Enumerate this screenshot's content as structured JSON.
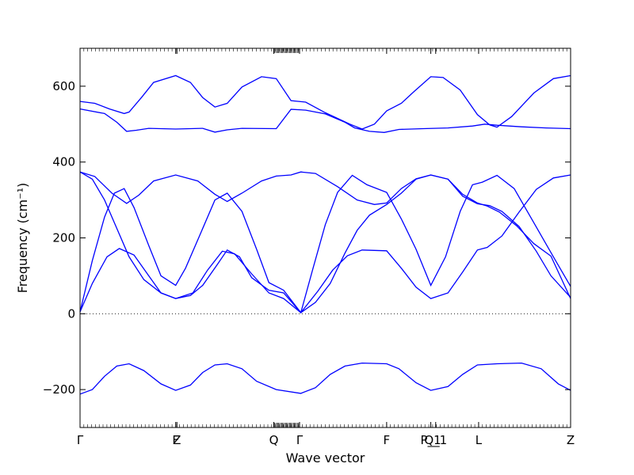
{
  "chart_data": {
    "type": "line",
    "title": "",
    "xlabel": "Wave vector",
    "ylabel": "Frequency (cm⁻¹)",
    "ylim": [
      -300,
      700
    ],
    "yticks": [
      -200,
      0,
      200,
      400,
      600
    ],
    "ytick_labels": [
      "−200",
      "0",
      "200",
      "400",
      "600"
    ],
    "x_positions": [
      0,
      0.388,
      0.395,
      0.79,
      0.895,
      1.25,
      1.43,
      1.45,
      1.625,
      2.0
    ],
    "x_range": [
      0,
      2.0
    ],
    "x_tick_labels": [
      {
        "x": 0,
        "label": "Γ"
      },
      {
        "x": 0.39,
        "label": "F"
      },
      {
        "x": 0.395,
        "label": "Z"
      },
      {
        "x": 0.79,
        "label": "Q"
      },
      {
        "x": 0.895,
        "label": "Γ"
      },
      {
        "x": 1.25,
        "label": "F"
      },
      {
        "x": 1.43,
        "label": "P_1"
      },
      {
        "x": 1.45,
        "label": "Q_1"
      },
      {
        "x": 1.625,
        "label": "L"
      },
      {
        "x": 2.0,
        "label": "Z"
      }
    ],
    "zero_line": true,
    "legend": "none",
    "series": [
      {
        "values": [
          [
            0,
            560
          ],
          [
            0.06,
            555
          ],
          [
            0.12,
            540
          ],
          [
            0.18,
            528
          ],
          [
            0.2,
            532
          ],
          [
            0.25,
            570
          ],
          [
            0.3,
            610
          ],
          [
            0.39,
            628
          ],
          [
            0.45,
            610
          ],
          [
            0.5,
            570
          ],
          [
            0.55,
            545
          ],
          [
            0.6,
            555
          ],
          [
            0.66,
            598
          ],
          [
            0.74,
            625
          ],
          [
            0.8,
            620
          ],
          [
            0.86,
            562
          ],
          [
            0.92,
            558
          ],
          [
            1.0,
            530
          ],
          [
            1.1,
            500
          ],
          [
            1.15,
            487
          ],
          [
            1.2,
            500
          ],
          [
            1.25,
            535
          ],
          [
            1.31,
            555
          ],
          [
            1.36,
            585
          ],
          [
            1.43,
            625
          ],
          [
            1.48,
            623
          ],
          [
            1.55,
            590
          ],
          [
            1.62,
            525
          ],
          [
            1.67,
            498
          ],
          [
            1.7,
            492
          ],
          [
            1.76,
            520
          ],
          [
            1.85,
            582
          ],
          [
            1.93,
            620
          ],
          [
            2.0,
            628
          ]
        ]
      },
      {
        "values": [
          [
            0,
            540
          ],
          [
            0.1,
            528
          ],
          [
            0.15,
            505
          ],
          [
            0.19,
            481
          ],
          [
            0.23,
            484
          ],
          [
            0.28,
            489
          ],
          [
            0.39,
            487
          ],
          [
            0.5,
            489
          ],
          [
            0.55,
            479
          ],
          [
            0.6,
            485
          ],
          [
            0.66,
            489
          ],
          [
            0.8,
            488
          ],
          [
            0.86,
            539
          ],
          [
            0.92,
            537
          ],
          [
            1.0,
            527
          ],
          [
            1.08,
            505
          ],
          [
            1.12,
            490
          ],
          [
            1.18,
            481
          ],
          [
            1.24,
            478
          ],
          [
            1.3,
            486
          ],
          [
            1.4,
            488
          ],
          [
            1.5,
            490
          ],
          [
            1.6,
            495
          ],
          [
            1.65,
            500
          ],
          [
            1.7,
            497
          ],
          [
            1.8,
            493
          ],
          [
            1.9,
            490
          ],
          [
            2.0,
            488
          ]
        ]
      },
      {
        "values": [
          [
            0,
            374
          ],
          [
            0.06,
            362
          ],
          [
            0.13,
            318
          ],
          [
            0.19,
            291
          ],
          [
            0.24,
            313
          ],
          [
            0.3,
            350
          ],
          [
            0.39,
            366
          ],
          [
            0.48,
            350
          ],
          [
            0.55,
            315
          ],
          [
            0.6,
            296
          ],
          [
            0.66,
            318
          ],
          [
            0.74,
            350
          ],
          [
            0.8,
            363
          ],
          [
            0.86,
            366
          ],
          [
            0.9,
            374
          ],
          [
            0.96,
            370
          ],
          [
            1.05,
            335
          ],
          [
            1.13,
            300
          ],
          [
            1.2,
            288
          ],
          [
            1.25,
            292
          ],
          [
            1.31,
            330
          ],
          [
            1.37,
            356
          ],
          [
            1.43,
            366
          ],
          [
            1.5,
            355
          ],
          [
            1.56,
            315
          ],
          [
            1.62,
            292
          ],
          [
            1.66,
            284
          ],
          [
            1.71,
            268
          ],
          [
            1.78,
            232
          ],
          [
            1.85,
            185
          ],
          [
            1.92,
            152
          ],
          [
            2.0,
            40
          ]
        ]
      },
      {
        "values": [
          [
            0,
            5
          ],
          [
            0.05,
            140
          ],
          [
            0.1,
            255
          ],
          [
            0.14,
            318
          ],
          [
            0.18,
            330
          ],
          [
            0.22,
            280
          ],
          [
            0.28,
            180
          ],
          [
            0.33,
            100
          ],
          [
            0.39,
            75
          ],
          [
            0.43,
            120
          ],
          [
            0.49,
            210
          ],
          [
            0.55,
            300
          ],
          [
            0.6,
            318
          ],
          [
            0.66,
            270
          ],
          [
            0.72,
            170
          ],
          [
            0.77,
            82
          ],
          [
            0.83,
            62
          ],
          [
            0.9,
            3
          ],
          [
            0.95,
            120
          ],
          [
            1.0,
            235
          ],
          [
            1.05,
            320
          ],
          [
            1.11,
            365
          ],
          [
            1.17,
            340
          ],
          [
            1.25,
            320
          ],
          [
            1.31,
            250
          ],
          [
            1.37,
            170
          ],
          [
            1.43,
            75
          ],
          [
            1.49,
            150
          ],
          [
            1.55,
            270
          ],
          [
            1.6,
            340
          ],
          [
            1.64,
            347
          ],
          [
            1.7,
            365
          ],
          [
            1.77,
            330
          ],
          [
            1.85,
            240
          ],
          [
            1.93,
            150
          ],
          [
            2.0,
            72
          ]
        ]
      },
      {
        "values": [
          [
            0,
            5
          ],
          [
            0.05,
            80
          ],
          [
            0.11,
            150
          ],
          [
            0.16,
            172
          ],
          [
            0.22,
            155
          ],
          [
            0.28,
            100
          ],
          [
            0.33,
            55
          ],
          [
            0.39,
            40
          ],
          [
            0.46,
            55
          ],
          [
            0.52,
            115
          ],
          [
            0.58,
            165
          ],
          [
            0.63,
            158
          ],
          [
            0.7,
            105
          ],
          [
            0.77,
            55
          ],
          [
            0.83,
            40
          ],
          [
            0.9,
            3
          ],
          [
            0.97,
            60
          ],
          [
            1.03,
            115
          ],
          [
            1.09,
            153
          ],
          [
            1.15,
            168
          ],
          [
            1.25,
            166
          ],
          [
            1.31,
            120
          ],
          [
            1.37,
            70
          ],
          [
            1.43,
            40
          ],
          [
            1.5,
            55
          ],
          [
            1.56,
            110
          ],
          [
            1.62,
            168
          ],
          [
            1.66,
            175
          ],
          [
            1.72,
            205
          ],
          [
            1.79,
            268
          ],
          [
            1.86,
            328
          ],
          [
            1.93,
            358
          ],
          [
            2.0,
            366
          ]
        ]
      },
      {
        "values": [
          [
            0,
            374
          ],
          [
            0.05,
            355
          ],
          [
            0.1,
            300
          ],
          [
            0.15,
            225
          ],
          [
            0.2,
            150
          ],
          [
            0.26,
            90
          ],
          [
            0.33,
            55
          ],
          [
            0.39,
            40
          ],
          [
            0.45,
            48
          ],
          [
            0.5,
            75
          ],
          [
            0.56,
            130
          ],
          [
            0.6,
            168
          ],
          [
            0.65,
            150
          ],
          [
            0.7,
            95
          ],
          [
            0.77,
            62
          ],
          [
            0.83,
            55
          ],
          [
            0.9,
            3
          ],
          [
            0.96,
            30
          ],
          [
            1.02,
            80
          ],
          [
            1.08,
            160
          ],
          [
            1.13,
            220
          ],
          [
            1.18,
            260
          ],
          [
            1.25,
            288
          ],
          [
            1.31,
            318
          ],
          [
            1.37,
            355
          ],
          [
            1.43,
            366
          ],
          [
            1.5,
            355
          ],
          [
            1.56,
            310
          ],
          [
            1.62,
            290
          ],
          [
            1.67,
            285
          ],
          [
            1.72,
            270
          ],
          [
            1.79,
            230
          ],
          [
            1.86,
            165
          ],
          [
            1.92,
            100
          ],
          [
            2.0,
            43
          ]
        ]
      },
      {
        "values": [
          [
            0,
            -212
          ],
          [
            0.05,
            -200
          ],
          [
            0.1,
            -165
          ],
          [
            0.15,
            -138
          ],
          [
            0.2,
            -132
          ],
          [
            0.26,
            -150
          ],
          [
            0.33,
            -185
          ],
          [
            0.39,
            -202
          ],
          [
            0.45,
            -188
          ],
          [
            0.5,
            -155
          ],
          [
            0.55,
            -135
          ],
          [
            0.6,
            -132
          ],
          [
            0.66,
            -145
          ],
          [
            0.72,
            -178
          ],
          [
            0.8,
            -200
          ],
          [
            0.9,
            -210
          ],
          [
            0.96,
            -195
          ],
          [
            1.02,
            -160
          ],
          [
            1.08,
            -138
          ],
          [
            1.15,
            -130
          ],
          [
            1.25,
            -132
          ],
          [
            1.3,
            -145
          ],
          [
            1.37,
            -182
          ],
          [
            1.43,
            -202
          ],
          [
            1.5,
            -192
          ],
          [
            1.56,
            -160
          ],
          [
            1.62,
            -135
          ],
          [
            1.7,
            -132
          ],
          [
            1.8,
            -130
          ],
          [
            1.88,
            -145
          ],
          [
            1.95,
            -185
          ],
          [
            2.0,
            -202
          ]
        ]
      }
    ]
  }
}
